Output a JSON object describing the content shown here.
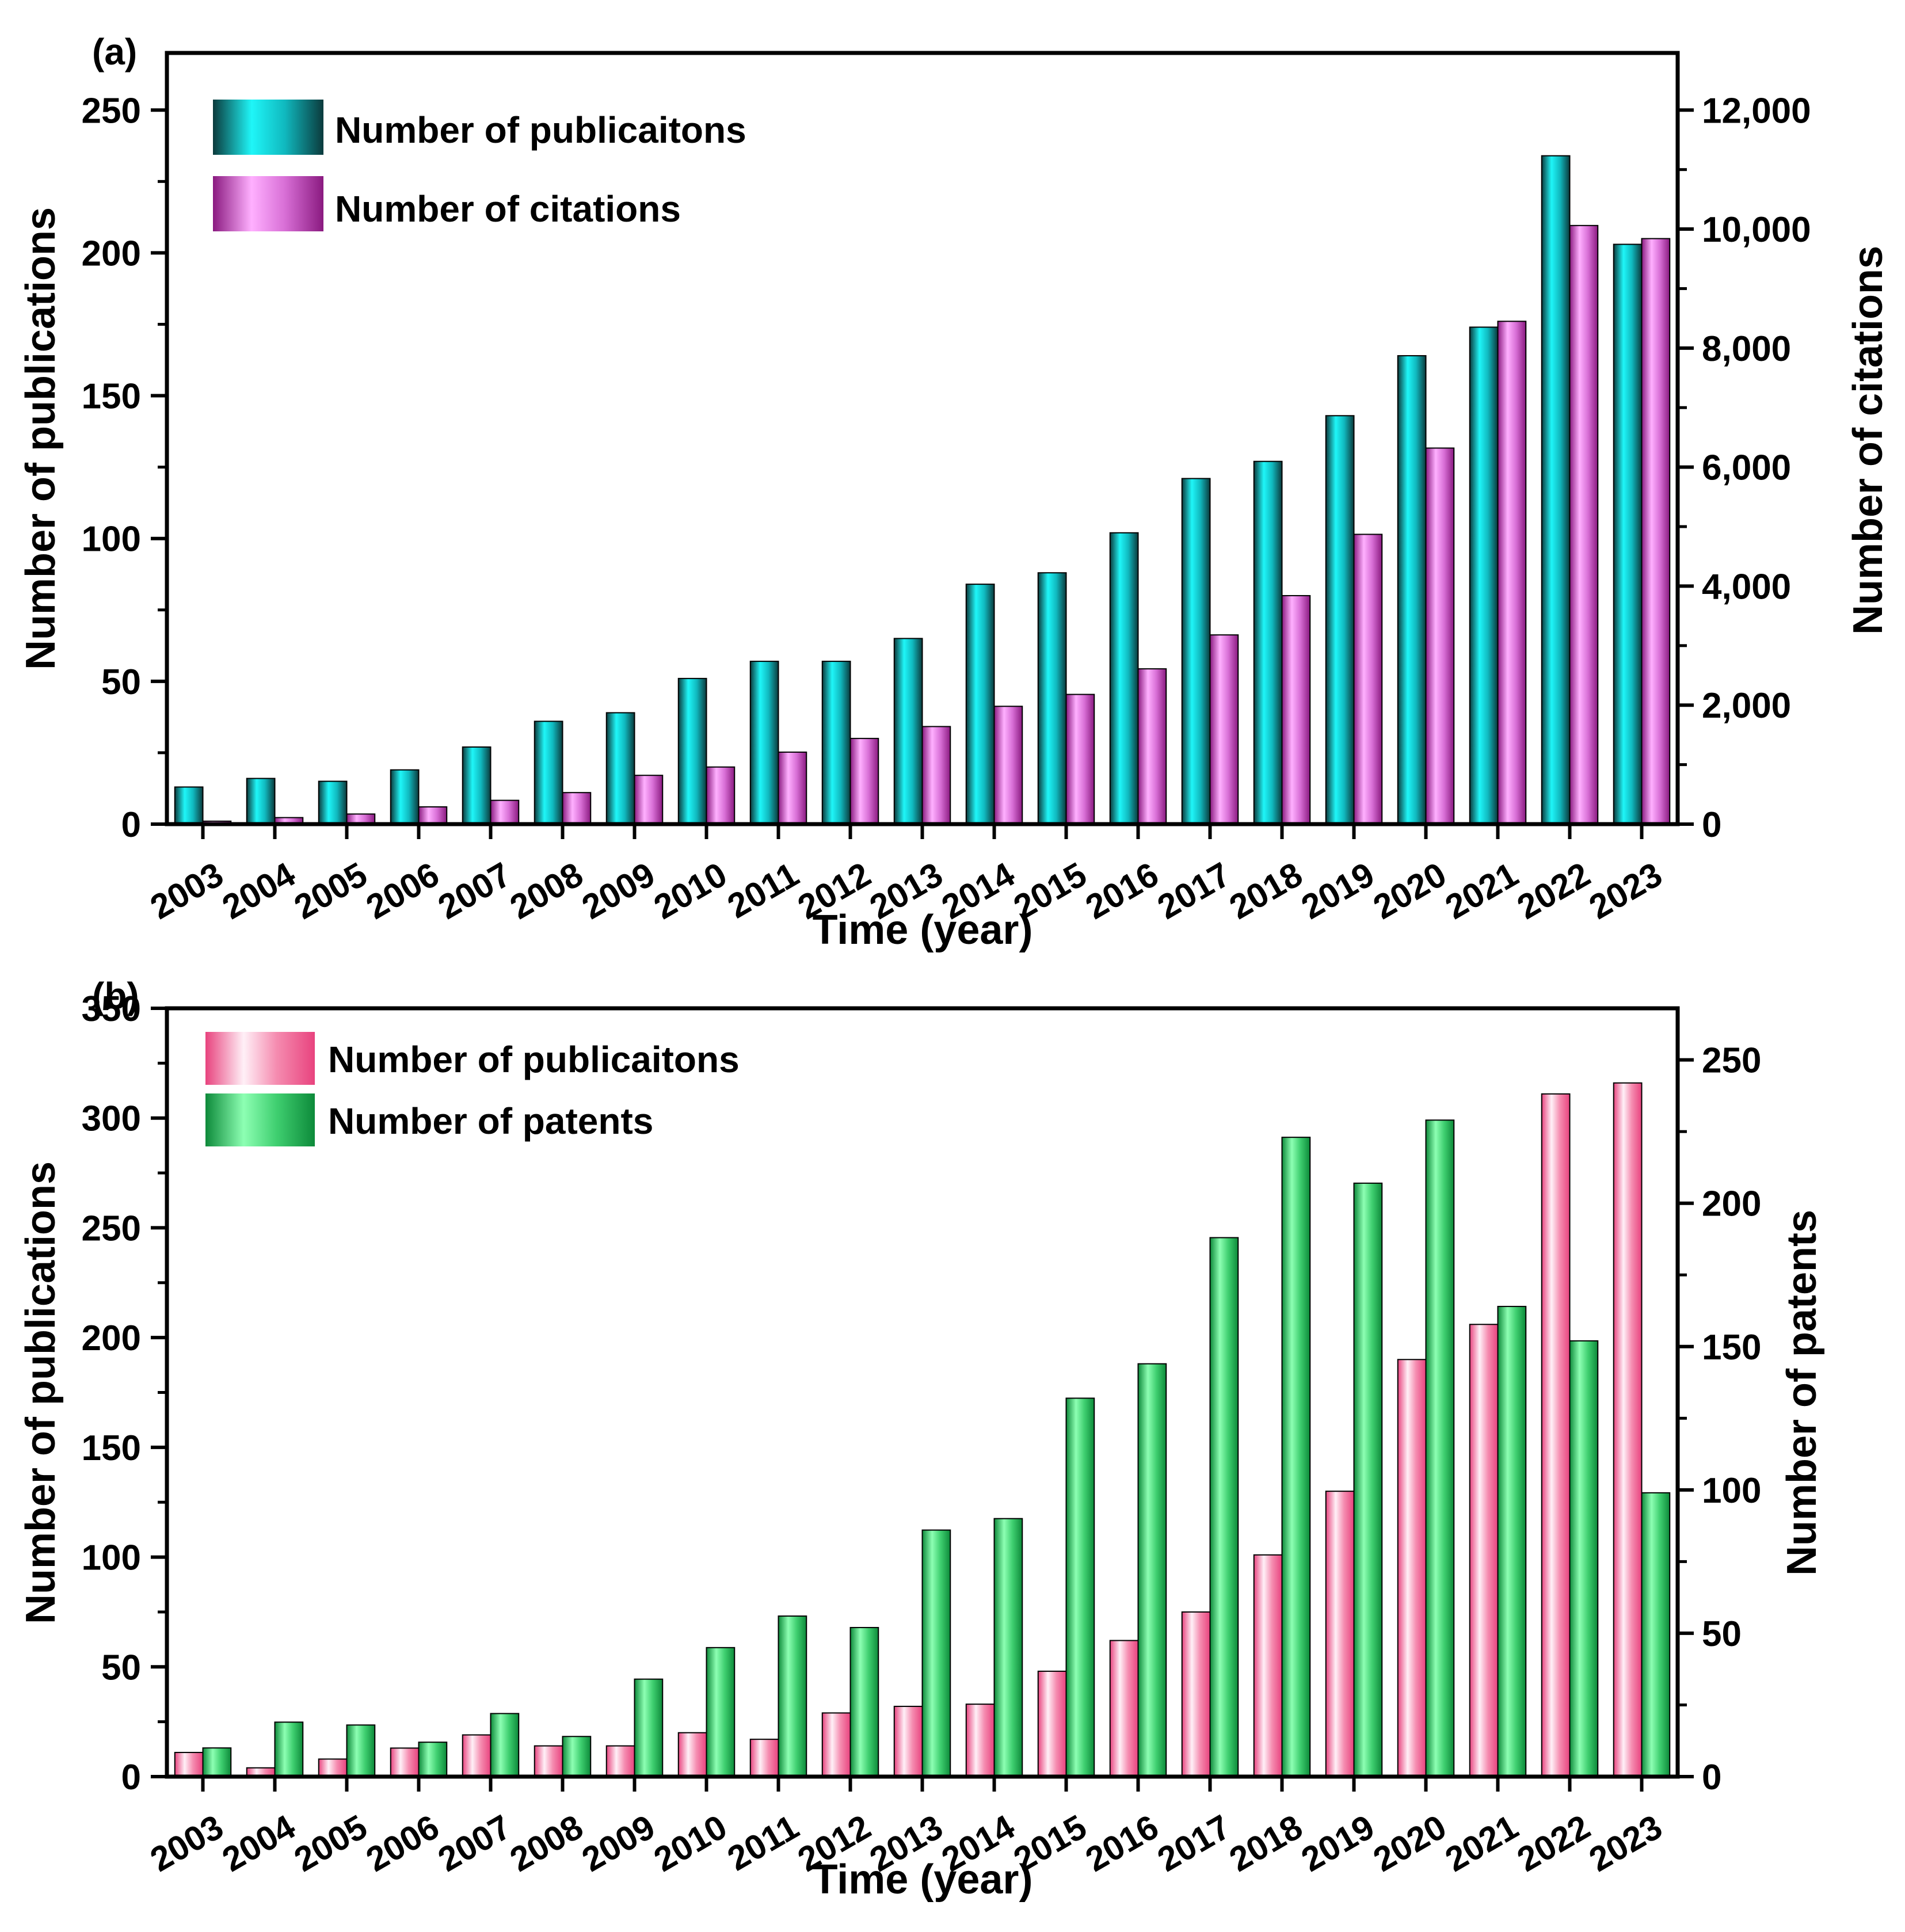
{
  "chart_data": [
    {
      "panel_label": "(a)",
      "type": "bar",
      "xlabel": "Time (year)",
      "ylabel_left": "Number of publications",
      "ylabel_right": "Number of citations",
      "categories": [
        "2003",
        "2004",
        "2005",
        "2006",
        "2007",
        "2008",
        "2009",
        "2010",
        "2011",
        "2012",
        "2013",
        "2014",
        "2015",
        "2016",
        "2017",
        "2018",
        "2019",
        "2020",
        "2021",
        "2022",
        "2023"
      ],
      "ylim_left": [
        0,
        270
      ],
      "yticks_left": [
        0,
        50,
        100,
        150,
        200,
        250
      ],
      "ylim_right": [
        0,
        12960
      ],
      "yticks_right": [
        0,
        2000,
        4000,
        6000,
        8000,
        10000,
        12000
      ],
      "yticks_right_labels": [
        "0",
        "2,000",
        "4,000",
        "6,000",
        "8,000",
        "10,000",
        "12,000"
      ],
      "series": [
        {
          "name": "Number of publicaitons",
          "axis": "left",
          "color_dark": "#0b3a3c",
          "color_mid": "#10b9bf",
          "color_light": "#1ff6f8",
          "values": [
            13,
            16,
            15,
            19,
            27,
            36,
            39,
            51,
            57,
            57,
            65,
            84,
            88,
            102,
            121,
            127,
            143,
            164,
            174,
            234,
            203
          ]
        },
        {
          "name": "Number of citations",
          "axis": "right",
          "color_dark": "#8a1a80",
          "color_mid": "#d86fd6",
          "color_light": "#ffb0ff",
          "values": [
            50,
            110,
            170,
            290,
            400,
            530,
            820,
            960,
            1210,
            1440,
            1640,
            1980,
            2180,
            2610,
            3180,
            3840,
            4870,
            6320,
            8450,
            10060,
            9840
          ]
        }
      ]
    },
    {
      "panel_label": "(b)",
      "type": "bar",
      "xlabel": "Time (year)",
      "ylabel_left": "Number of publications",
      "ylabel_right": "Number of patents",
      "categories": [
        "2003",
        "2004",
        "2005",
        "2006",
        "2007",
        "2008",
        "2009",
        "2010",
        "2011",
        "2012",
        "2013",
        "2014",
        "2015",
        "2016",
        "2017",
        "2018",
        "2019",
        "2020",
        "2021",
        "2022",
        "2023"
      ],
      "ylim_left": [
        0,
        350
      ],
      "yticks_left": [
        0,
        50,
        100,
        150,
        200,
        250,
        300,
        350
      ],
      "ylim_right": [
        0,
        268
      ],
      "yticks_right": [
        0,
        50,
        100,
        150,
        200,
        250
      ],
      "yticks_right_labels": [
        "0",
        "50",
        "100",
        "150",
        "200",
        "250"
      ],
      "series": [
        {
          "name": "Number of publicaitons",
          "axis": "left",
          "color_dark": "#e8437e",
          "color_mid": "#f58cb0",
          "color_light": "#fff0f7",
          "values": [
            11,
            4,
            8,
            13,
            19,
            14,
            14,
            20,
            17,
            29,
            32,
            33,
            48,
            62,
            75,
            101,
            130,
            190,
            206,
            311,
            316
          ]
        },
        {
          "name": "Number of patents",
          "axis": "right",
          "color_dark": "#0d8a3a",
          "color_mid": "#3fcf70",
          "color_light": "#8dffb3",
          "values": [
            10,
            19,
            18,
            12,
            22,
            14,
            34,
            45,
            56,
            52,
            86,
            90,
            132,
            144,
            188,
            223,
            207,
            229,
            164,
            152,
            99
          ]
        }
      ]
    }
  ]
}
